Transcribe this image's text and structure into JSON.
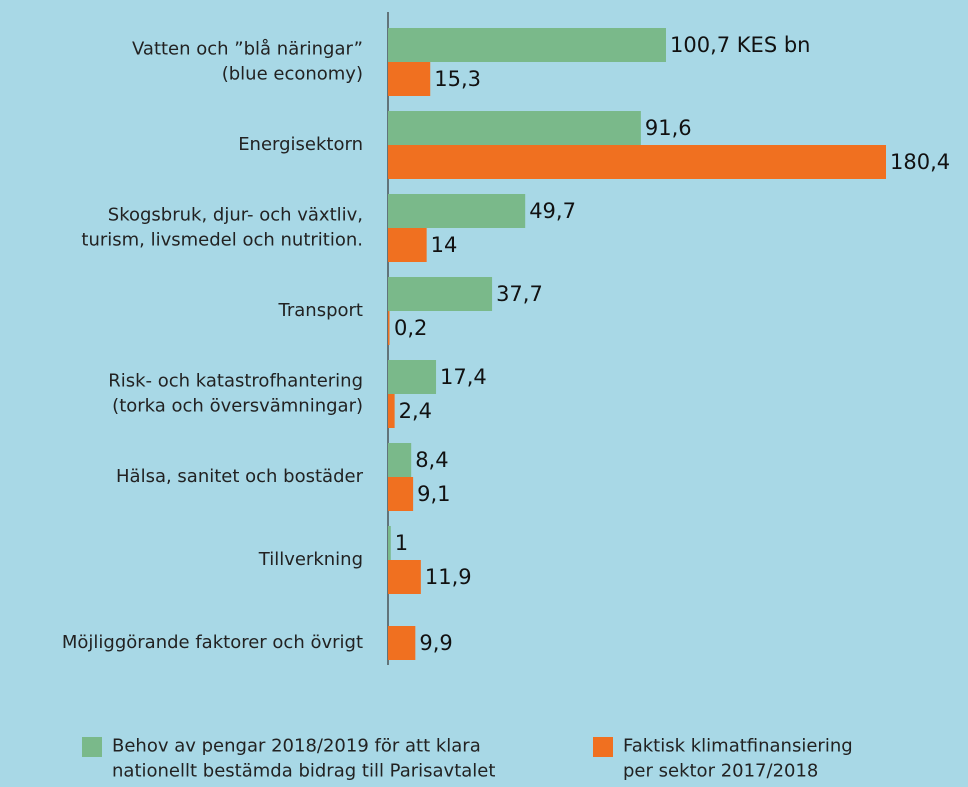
{
  "chart_data": {
    "type": "hbar",
    "categories": [
      "Vatten och ”blå näringar”\n(blue economy)",
      "Energisektorn",
      "Skogsbruk, djur- och växtliv,\nturism, livsmedel och nutrition.",
      "Transport",
      "Risk- och katastrofhantering\n(torka och översvämningar)",
      "Hälsa, sanitet och bostäder",
      "Tillverkning",
      "Möjliggörande faktorer och övrigt"
    ],
    "series": [
      {
        "name": "Behov av pengar 2018/2019 för att klara\nnationellt bestämda bidrag till Parisavtalet",
        "color": "#7ab98a",
        "values": [
          100.7,
          91.6,
          49.7,
          37.7,
          17.4,
          8.4,
          1,
          null
        ],
        "value_labels": [
          "100,7 KES bn",
          "91,6",
          "49,7",
          "37,7",
          "17,4",
          "8,4",
          "1",
          null
        ]
      },
      {
        "name": "Faktisk klimatfinansiering\nper sektor 2017/2018",
        "color": "#f07020",
        "values": [
          15.3,
          180.4,
          14,
          0.2,
          2.4,
          9.1,
          11.9,
          9.9
        ],
        "value_labels": [
          "15,3",
          "180,4",
          "14",
          "0,2",
          "2,4",
          "9,1",
          "11,9",
          "9,9"
        ]
      }
    ],
    "xlim": [
      0,
      180.4
    ]
  }
}
